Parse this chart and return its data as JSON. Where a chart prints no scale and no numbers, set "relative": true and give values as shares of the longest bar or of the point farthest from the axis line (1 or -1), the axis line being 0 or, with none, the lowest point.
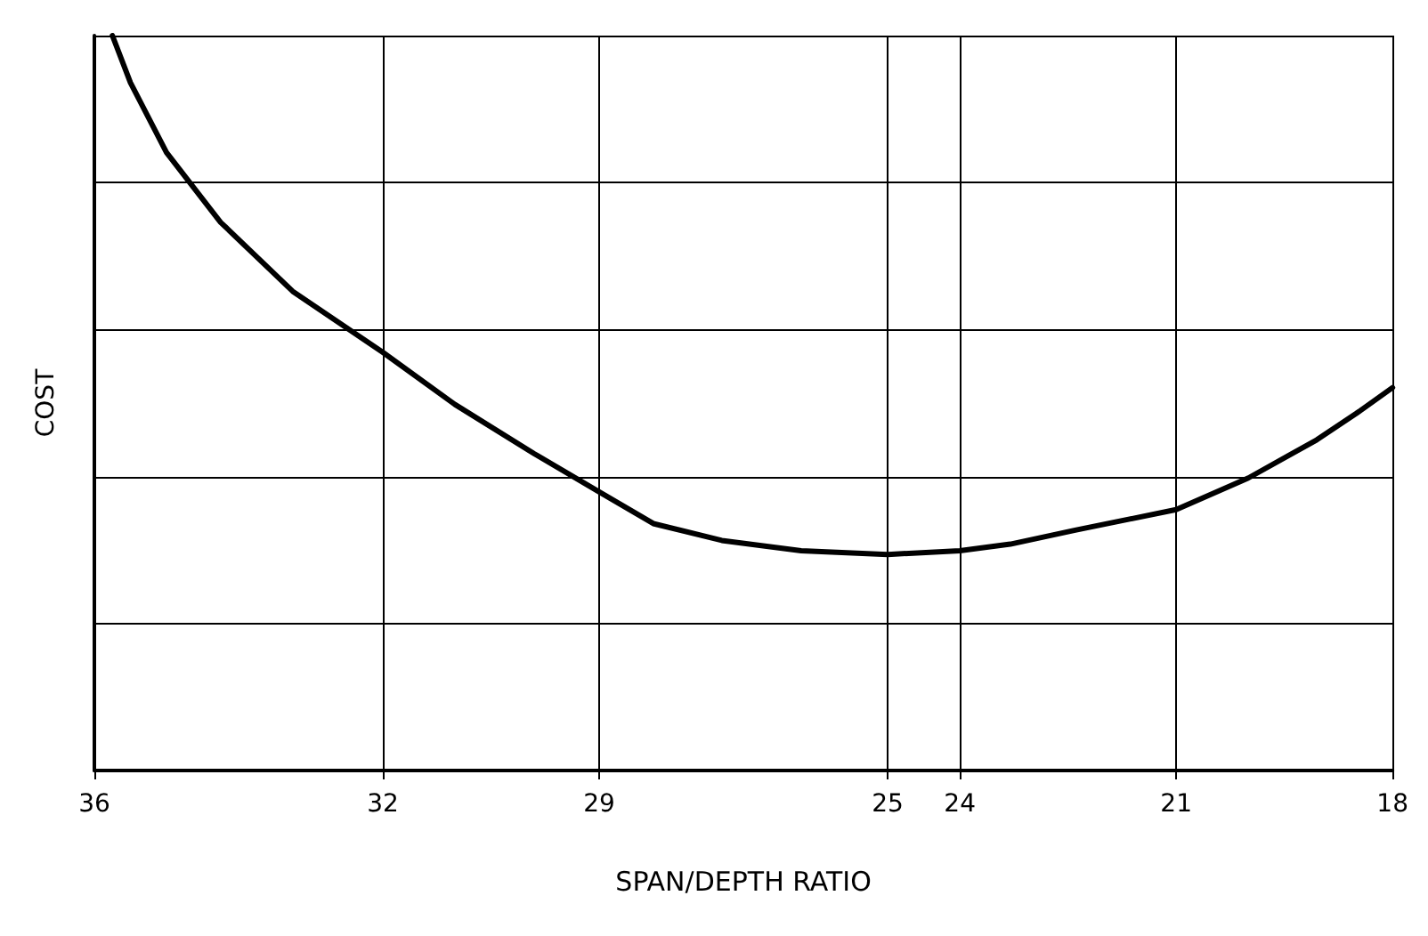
{
  "chart_data": {
    "type": "line",
    "xlabel": "SPAN/DEPTH RATIO",
    "ylabel": "COST",
    "relative": true,
    "grid": true,
    "marker": "none",
    "line_style": "solid",
    "xlim": [
      36,
      18
    ],
    "xticks": [
      36,
      32,
      29,
      25,
      24,
      21,
      18
    ],
    "x": [
      35.75,
      35.5,
      35.0,
      34.25,
      33.25,
      32,
      31.0,
      29.9,
      29,
      28.25,
      27.3,
      26.2,
      25,
      24,
      23.3,
      22.4,
      21,
      20.0,
      19.05,
      18.5,
      18
    ],
    "series": [
      {
        "color": "#000000",
        "values": [
          1,
          0.936,
          0.841,
          0.746,
          0.652,
          0.569,
          0.498,
          0.431,
          0.379,
          0.336,
          0.313,
          0.299,
          0.294,
          0.299,
          0.308,
          0.327,
          0.355,
          0.398,
          0.45,
          0.486,
          0.521
        ]
      }
    ]
  }
}
